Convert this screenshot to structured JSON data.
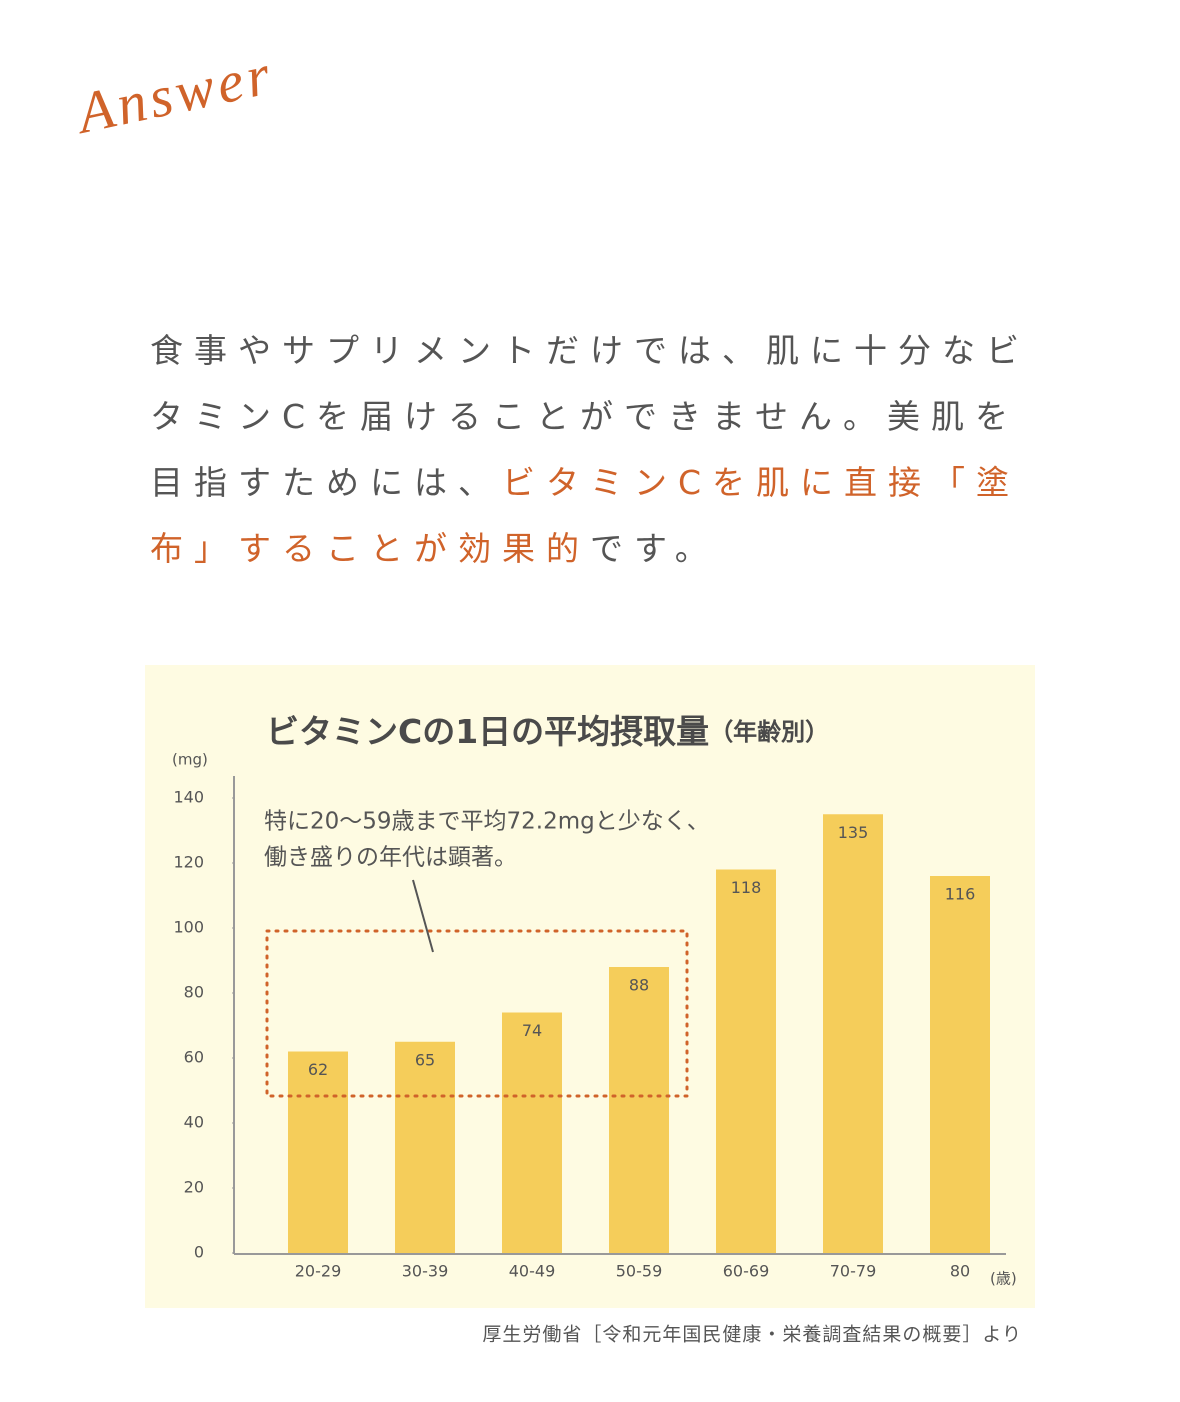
{
  "answer_label": "Answer",
  "paragraph": [
    {
      "text": "食事やサプリメントだけでは、肌に十分なビタミンCを届けることができません。美肌を目指すためには、",
      "color": "#555555"
    },
    {
      "text": "ビタミンCを肌に直接「塗布」することが効果的",
      "color": "#d0632a"
    },
    {
      "text": "です。",
      "color": "#555555"
    }
  ],
  "chart_data": {
    "type": "bar",
    "title": "ビタミンCの1日の平均摂取量",
    "subtitle": "（年齢別）",
    "y_label": "(mg)",
    "x_label": "(歳)",
    "categories": [
      "20-29",
      "30-39",
      "40-49",
      "50-59",
      "60-69",
      "70-79",
      "80"
    ],
    "values": [
      62,
      65,
      74,
      88,
      118,
      135,
      116
    ],
    "color": "#f5cd5a",
    "ylim": [
      0,
      140
    ],
    "yticks": [
      0,
      20,
      40,
      60,
      80,
      100,
      120,
      140
    ],
    "annotation": [
      "特に20〜59歳まで平均72.2mgと少なく、",
      "働き盛りの年代は顕著。"
    ],
    "annotation_color": "#d0632a"
  },
  "source": "厚生労働省［令和元年国民健康・栄養調査結果の概要］より"
}
